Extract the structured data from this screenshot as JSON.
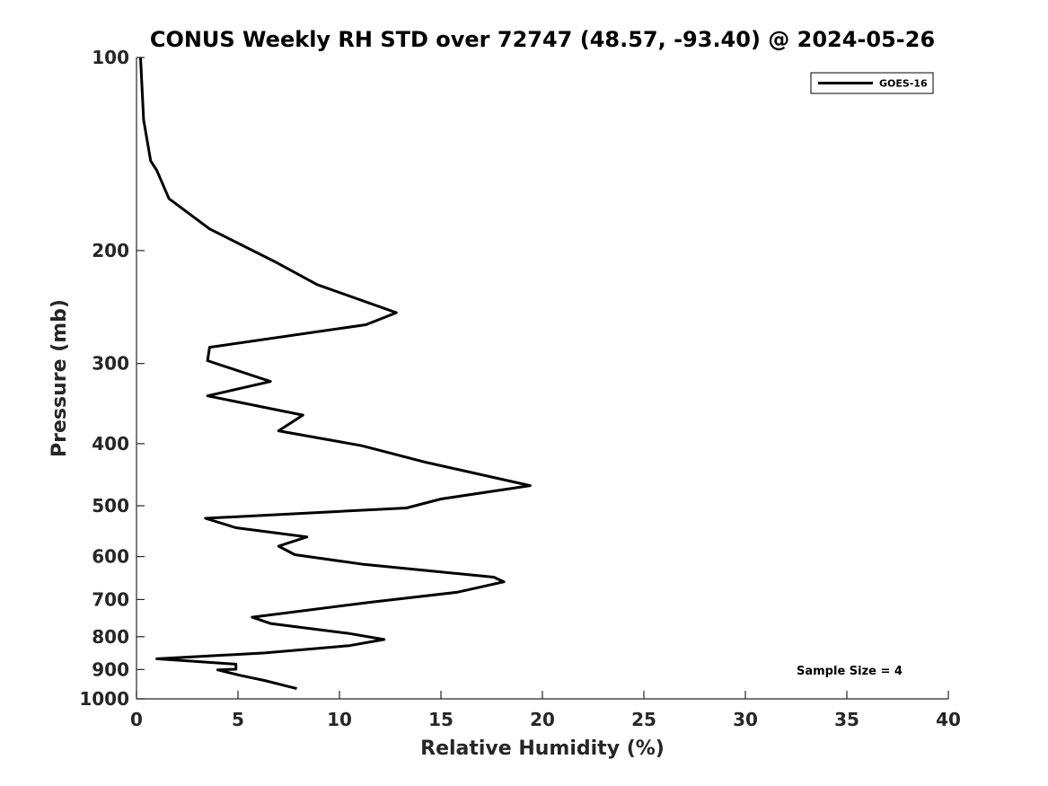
{
  "chart_data": {
    "type": "line",
    "title": "CONUS Weekly RH STD over 72747 (48.57, -93.40) @ 2024-05-26",
    "xlabel": "Relative Humidity (%)",
    "ylabel": "Pressure (mb)",
    "xlim": [
      0,
      40
    ],
    "ylim": [
      1000,
      100
    ],
    "yscale": "log",
    "x_ticks": [
      0,
      5,
      10,
      15,
      20,
      25,
      30,
      35,
      40
    ],
    "x_tick_labels": [
      "0",
      "5",
      "10",
      "15",
      "20",
      "25",
      "30",
      "35",
      "40"
    ],
    "y_ticks": [
      100,
      200,
      300,
      400,
      500,
      600,
      700,
      800,
      900,
      1000
    ],
    "y_tick_labels": [
      "100",
      "200",
      "300",
      "400",
      "500",
      "600",
      "700",
      "800",
      "900",
      "1000"
    ],
    "grid": false,
    "legend_position": "top-right",
    "series": [
      {
        "name": "GOES-16",
        "color": "#000000",
        "x": [
          0.2,
          0.35,
          0.7,
          1.0,
          1.6,
          3.6,
          6.8,
          8.9,
          12.8,
          11.3,
          3.6,
          3.5,
          6.6,
          3.5,
          8.2,
          7.0,
          11.1,
          14.3,
          19.4,
          15.0,
          13.3,
          3.4,
          4.9,
          8.4,
          7.0,
          7.8,
          11.2,
          17.6,
          18.1,
          15.8,
          11.5,
          5.7,
          6.6,
          10.5,
          12.2,
          10.5,
          6.3,
          1.0,
          4.9,
          4.9,
          4.0,
          5.1,
          6.3,
          7.9
        ],
        "y": [
          100,
          125,
          145,
          150,
          166,
          185,
          208,
          226,
          250,
          261,
          283,
          297,
          320,
          337,
          361,
          382,
          403,
          428,
          465,
          488,
          504,
          523,
          541,
          559,
          578,
          596,
          617,
          646,
          657,
          682,
          707,
          746,
          763,
          791,
          808,
          826,
          848,
          866,
          883,
          899,
          901,
          919,
          936,
          964
        ]
      }
    ],
    "annotations": [
      "Sample Size = 4"
    ]
  }
}
